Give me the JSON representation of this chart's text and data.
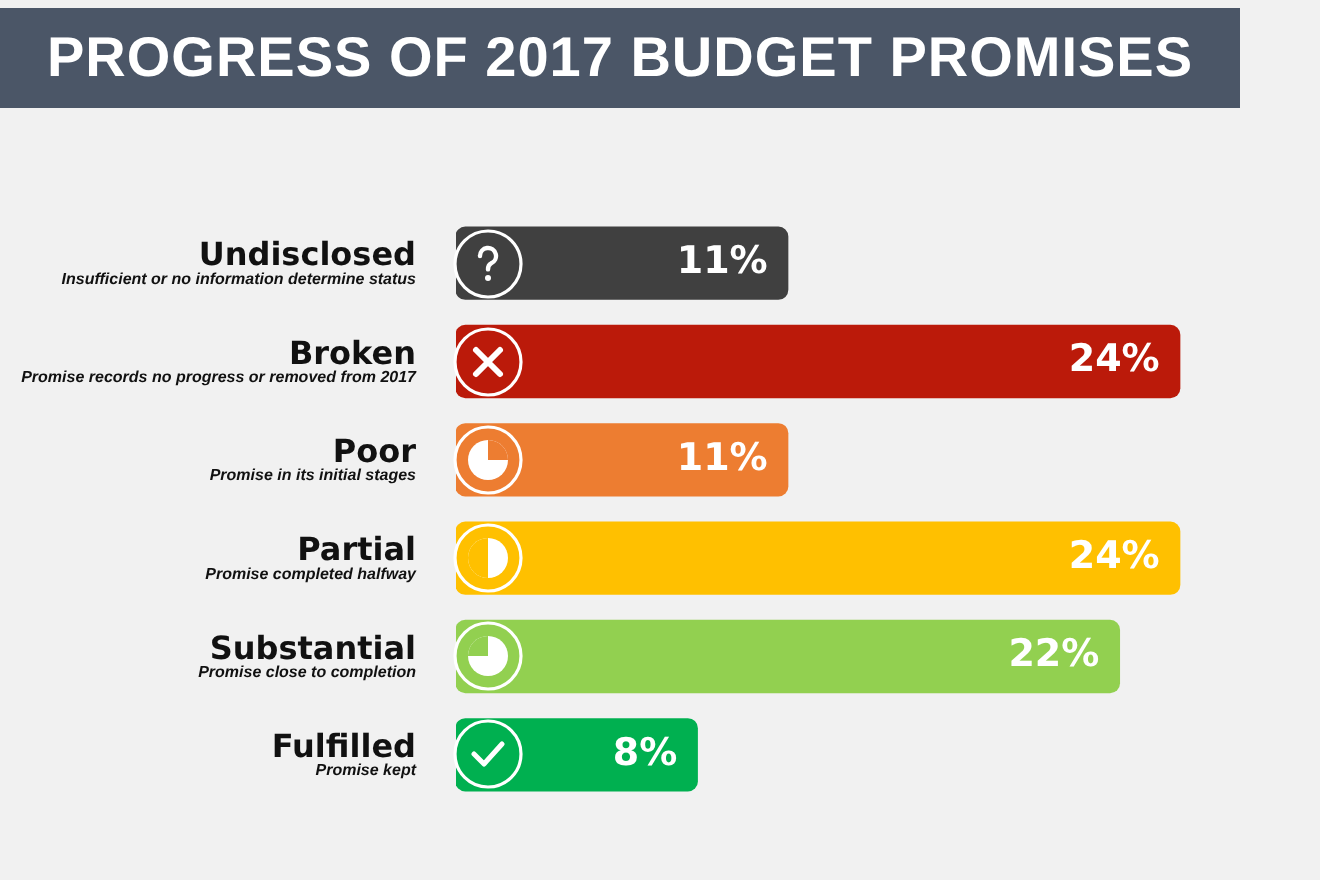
{
  "chart_data": {
    "type": "bar",
    "orientation": "horizontal",
    "title": "PROGRESS OF 2017 BUDGET PROMISES",
    "categories": [
      "Undisclosed",
      "Broken",
      "Poor",
      "Partial",
      "Substantial",
      "Fulfilled"
    ],
    "values": [
      11,
      24,
      11,
      24,
      22,
      8
    ],
    "value_labels": [
      "11%",
      "24%",
      "11%",
      "24%",
      "22%",
      "8%"
    ],
    "colors": [
      "#404040",
      "#bb1a0a",
      "#ed7d31",
      "#ffc000",
      "#92d050",
      "#00b050"
    ],
    "annotations": [
      "Insufficient or no information determine status",
      "Promise records no progress or removed from 2017",
      "Promise in its initial stages",
      "Promise completed halfway",
      "Promise close to completion",
      "Promise kept"
    ]
  }
}
